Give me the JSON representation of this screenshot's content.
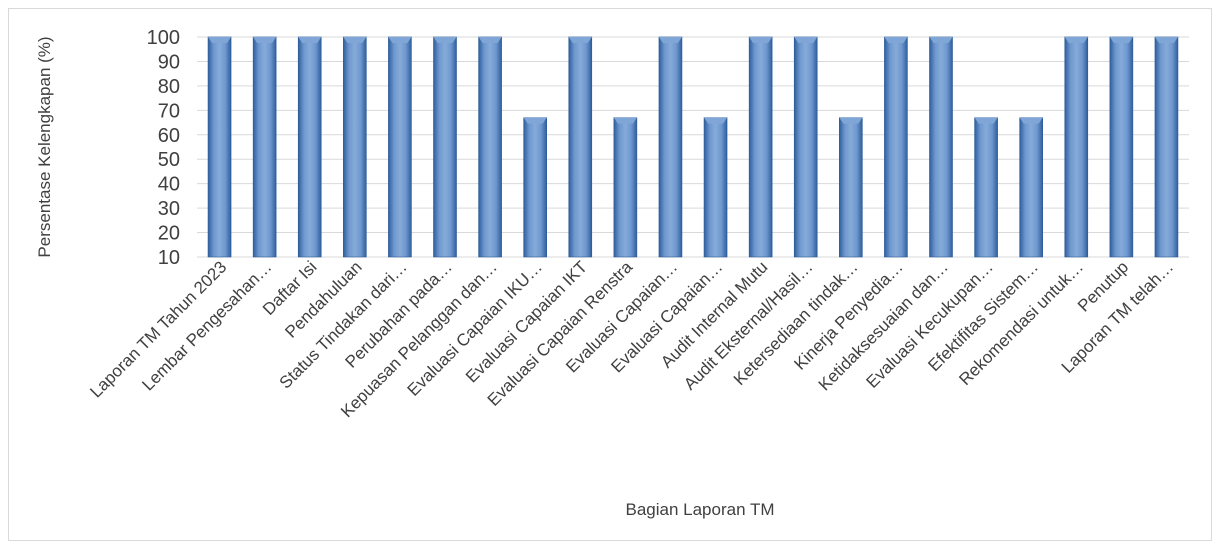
{
  "chart_data": {
    "type": "bar",
    "title": "",
    "xlabel": "Bagian Laporan TM",
    "ylabel": "Persentase Kelengkapan (%)",
    "ylim": [
      10,
      100
    ],
    "yticks": [
      10,
      20,
      30,
      40,
      50,
      60,
      70,
      80,
      90,
      100
    ],
    "grid": true,
    "legend": "none",
    "categories": [
      "Laporan TM Tahun 2023",
      "Lembar Pengesahan…",
      "Daftar Isi",
      "Pendahuluan",
      "Status Tindakan dari…",
      "Perubahan pada…",
      "Kepuasan Pelanggan dan…",
      "Evaluasi Capaian IKU…",
      "Evaluasi Capaian IKT",
      "Evaluasi Capaian Renstra",
      "Evaluasi Capaian…",
      "Evaluasi Capaian…",
      "Audit Internal Mutu",
      "Audit Eksternal/Hasil…",
      "Ketersediaan tindak…",
      "Kinerja Penyedia…",
      "Ketidaksesuaian dan…",
      "Evaluasi Kecukupan…",
      "Efektifitas Sistem…",
      "Rekomendasi untuk…",
      "Penutup",
      "Laporan TM telah…"
    ],
    "values": [
      100,
      100,
      100,
      100,
      100,
      100,
      100,
      67,
      100,
      67,
      100,
      67,
      100,
      100,
      67,
      100,
      100,
      67,
      67,
      100,
      100,
      100
    ],
    "colors": {
      "bar": "#4f81bd",
      "bar_light": "#7fa6d6",
      "bar_dark": "#2c5a95",
      "grid": "#d9d9d9",
      "text": "#404040"
    }
  }
}
